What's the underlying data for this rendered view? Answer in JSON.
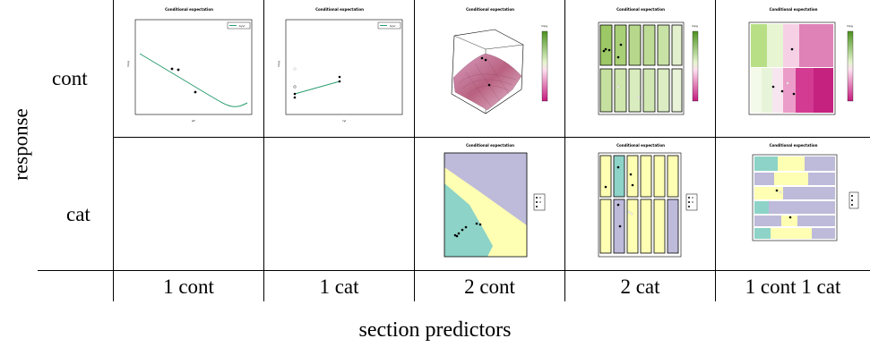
{
  "axes": {
    "response_label": "response",
    "predictors_label": "section predictors"
  },
  "rows": [
    {
      "label": "cont"
    },
    {
      "label": "cat"
    }
  ],
  "columns": [
    {
      "label": "1 cont"
    },
    {
      "label": "1 cat"
    },
    {
      "label": "2 cont"
    },
    {
      "label": "2 cat"
    },
    {
      "label": "1 cont 1 cat"
    }
  ],
  "panels": {
    "cont_1cont": {
      "title": "Conditional expectation",
      "legend": "byvr",
      "ylab": "mpg",
      "xlab": "wt"
    },
    "cont_1cat": {
      "title": "Conditional expectation",
      "legend": "byvr",
      "ylab": "mpg",
      "xlab": "cyl"
    },
    "cont_2cont": {
      "title": "Conditional expectation",
      "colorbar_label": "mpg"
    },
    "cont_2cat": {
      "title": "Conditional expectation",
      "colorbar_label": "mpg"
    },
    "cont_1cont1cat": {
      "title": "Conditional expectation",
      "colorbar_label": "mpg"
    },
    "cat_2cont": {
      "title": "Conditional expectation"
    },
    "cat_2cat": {
      "title": "Conditional expectation"
    },
    "cat_1cont1cat": {
      "title": "Conditional expectation"
    }
  },
  "colors": {
    "green_line": "#2a9d6f",
    "teal": "#8dd3c7",
    "yellow": "#ffffb3",
    "lavender": "#bebada",
    "pink_dark": "#c51b7d",
    "green_dark": "#4d9221"
  }
}
